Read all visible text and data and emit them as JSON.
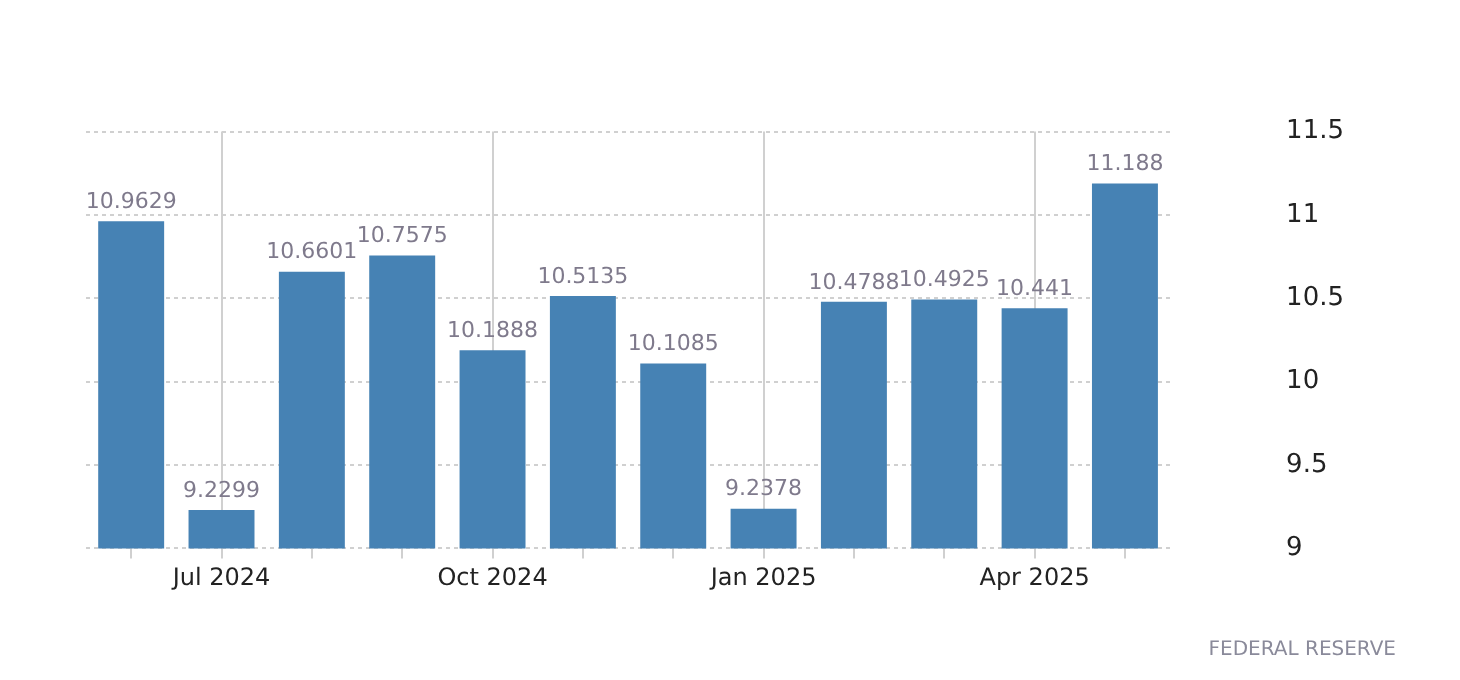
{
  "chart_data": {
    "type": "bar",
    "categories": [
      null,
      "Jul 2024",
      null,
      null,
      "Oct 2024",
      null,
      null,
      "Jan 2025",
      null,
      null,
      "Apr 2025",
      null
    ],
    "values": [
      10.9629,
      9.2299,
      10.6601,
      10.7575,
      10.1888,
      10.5135,
      10.1085,
      9.2378,
      10.4788,
      10.4925,
      10.441,
      11.188
    ],
    "color": "#4682b4",
    "ylim": [
      9,
      11.5
    ],
    "yticks": [
      9,
      9.5,
      10,
      10.5,
      11,
      11.5
    ],
    "grid": true,
    "data_labels": true,
    "annotations": [
      "FEDERAL RESERVE"
    ]
  }
}
